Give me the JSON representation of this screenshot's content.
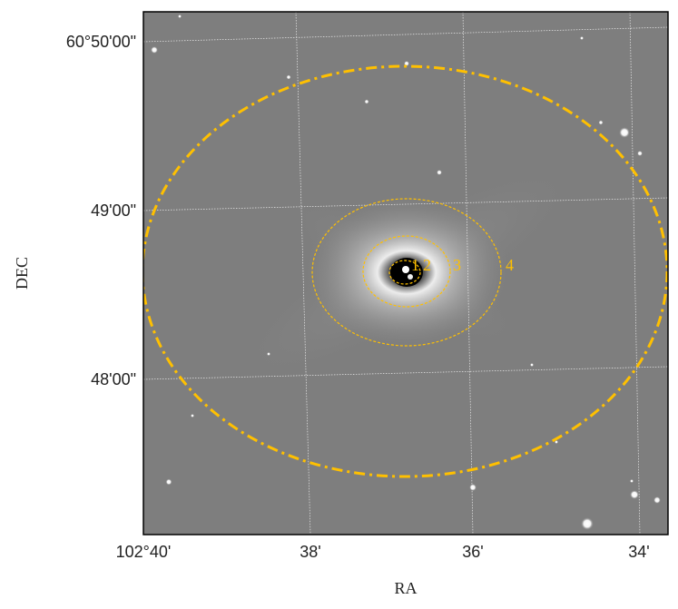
{
  "figure": {
    "xlabel": "RA",
    "ylabel": "DEC",
    "x_ticks": [
      "102°40'",
      "38'",
      "36'",
      "34'"
    ],
    "y_ticks": [
      "60°50'00\"",
      "49'00\"",
      "48'00\""
    ],
    "ring_labels": [
      "1",
      "2",
      "3",
      "4"
    ],
    "overlay_color": "#FFC000",
    "grid_color": "#ffffff"
  }
}
